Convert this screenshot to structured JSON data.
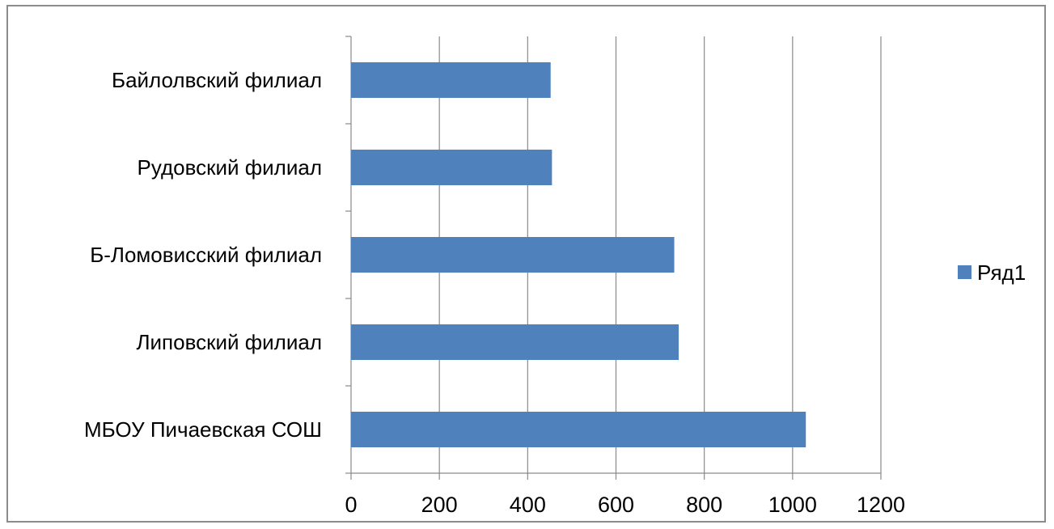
{
  "chart_data": {
    "type": "bar",
    "orientation": "horizontal",
    "categories": [
      "Байлолвский филиал",
      "Рудовский филиал",
      "Б-Ломовисский филиал",
      "Липовский филиал",
      "МБОУ Пичаевская  СОШ"
    ],
    "series": [
      {
        "name": "Ряд1",
        "values": [
          452,
          455,
          732,
          742,
          1030
        ]
      }
    ],
    "xlim": [
      0,
      1200
    ],
    "ticks": [
      0,
      200,
      400,
      600,
      800,
      1000,
      1200
    ],
    "tick_labels": [
      "0",
      "200",
      "400",
      "600",
      "800",
      "1000",
      "1200"
    ],
    "grid": "vertical",
    "legend_position": "right",
    "colors": {
      "bar": "#4F81BD",
      "grid": "#8a8a8a",
      "axis": "#8a8a8a",
      "frame": "#8c8c8c"
    }
  }
}
